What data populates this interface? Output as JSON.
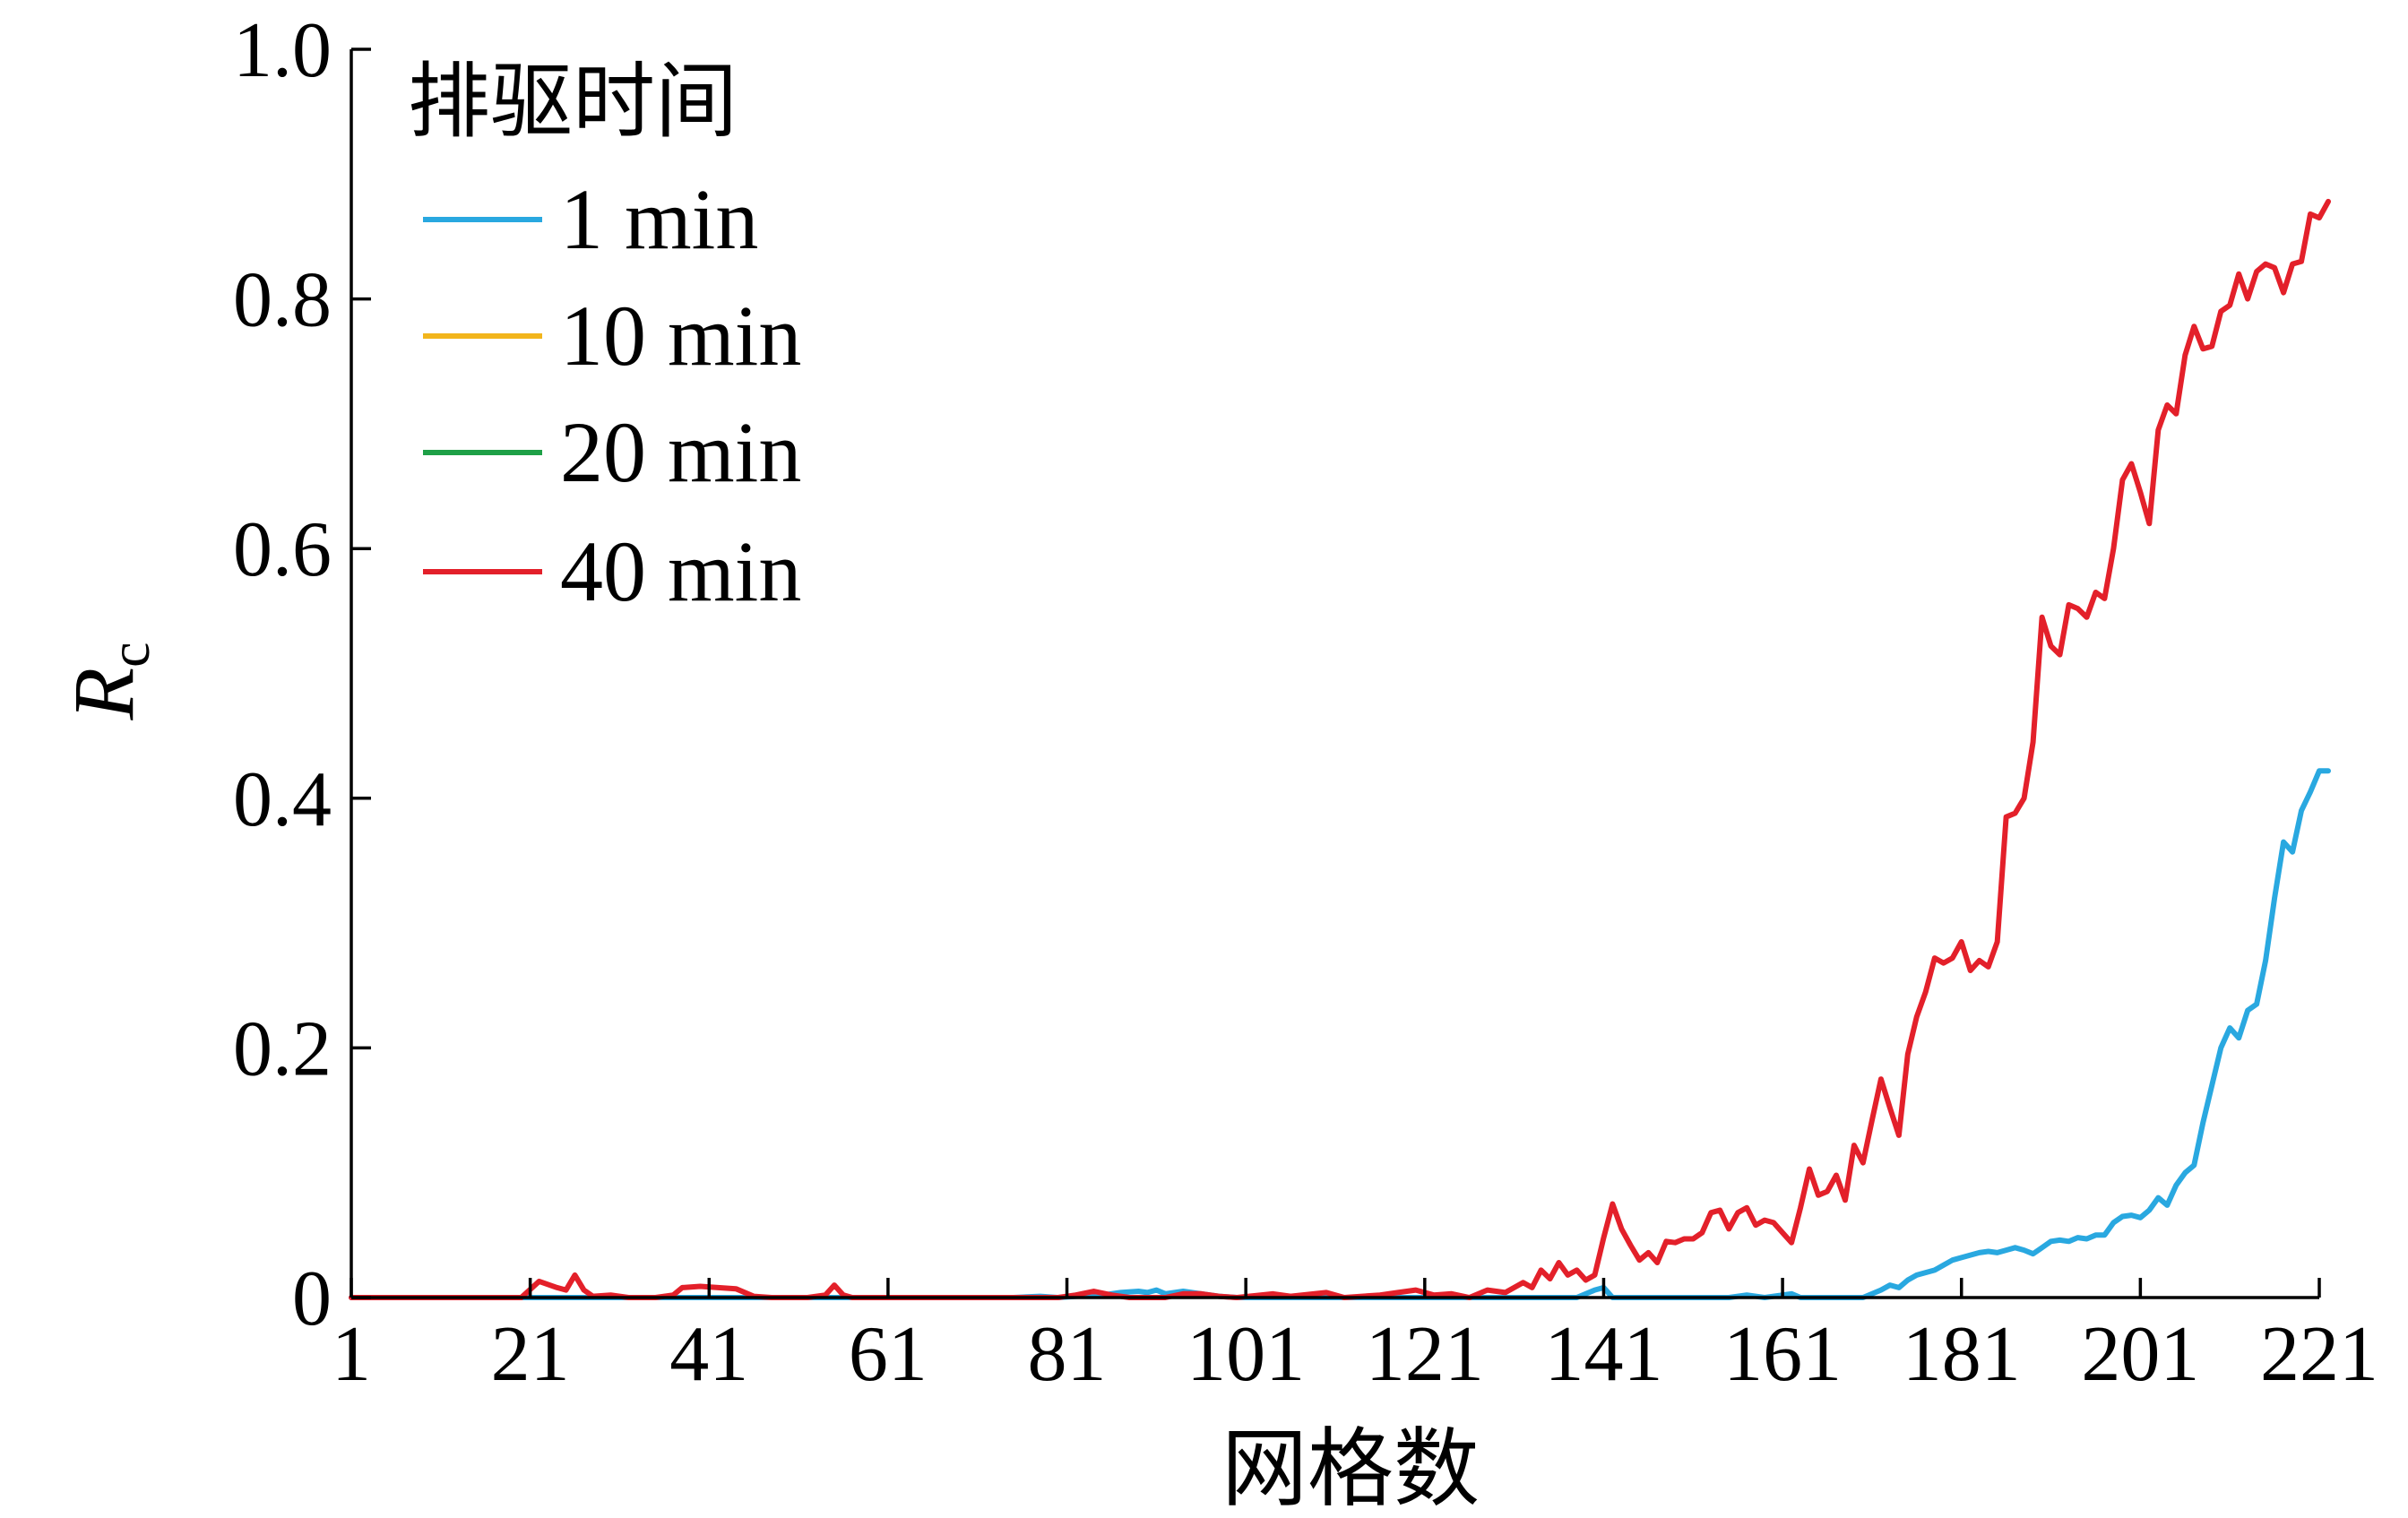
{
  "chart_data": {
    "type": "line",
    "title": "",
    "xlabel": "网格数",
    "ylabel": "R",
    "ylabel_sub": "c",
    "xlim": [
      1,
      221
    ],
    "ylim": [
      0,
      1.0
    ],
    "x_ticks": [
      1,
      21,
      41,
      61,
      81,
      101,
      121,
      141,
      161,
      181,
      201,
      221
    ],
    "y_ticks": [
      {
        "value": 0,
        "label": "0"
      },
      {
        "value": 0.2,
        "label": "0.2"
      },
      {
        "value": 0.4,
        "label": "0.4"
      },
      {
        "value": 0.6,
        "label": "0.6"
      },
      {
        "value": 0.8,
        "label": "0.8"
      },
      {
        "value": 1.0,
        "label": "1.0"
      }
    ],
    "legend": {
      "title": "排驱时间",
      "position": "top-left"
    },
    "series": [
      {
        "name": "1 min",
        "color": "#29a8e0",
        "points": [
          [
            1,
            0
          ],
          [
            21,
            0
          ],
          [
            41,
            0
          ],
          [
            61,
            0
          ],
          [
            75,
            0
          ],
          [
            78,
            0.001
          ],
          [
            80,
            0
          ],
          [
            82,
            0.001
          ],
          [
            85,
            0.002
          ],
          [
            87,
            0.004
          ],
          [
            89,
            0.005
          ],
          [
            90,
            0.004
          ],
          [
            91,
            0.006
          ],
          [
            92,
            0.003
          ],
          [
            94,
            0.005
          ],
          [
            96,
            0.003
          ],
          [
            98,
            0.001
          ],
          [
            100,
            0
          ],
          [
            120,
            0
          ],
          [
            138,
            0
          ],
          [
            140,
            0.006
          ],
          [
            141,
            0.008
          ],
          [
            142,
            0
          ],
          [
            155,
            0
          ],
          [
            157,
            0.002
          ],
          [
            159,
            0
          ],
          [
            162,
            0.003
          ],
          [
            163,
            0
          ],
          [
            170,
            0
          ],
          [
            172,
            0.006
          ],
          [
            173,
            0.01
          ],
          [
            174,
            0.008
          ],
          [
            175,
            0.014
          ],
          [
            176,
            0.018
          ],
          [
            177,
            0.02
          ],
          [
            178,
            0.022
          ],
          [
            179,
            0.026
          ],
          [
            180,
            0.03
          ],
          [
            181,
            0.032
          ],
          [
            182,
            0.034
          ],
          [
            183,
            0.036
          ],
          [
            184,
            0.037
          ],
          [
            185,
            0.036
          ],
          [
            186,
            0.038
          ],
          [
            187,
            0.04
          ],
          [
            188,
            0.038
          ],
          [
            189,
            0.035
          ],
          [
            190,
            0.04
          ],
          [
            191,
            0.045
          ],
          [
            192,
            0.046
          ],
          [
            193,
            0.045
          ],
          [
            194,
            0.048
          ],
          [
            195,
            0.047
          ],
          [
            196,
            0.05
          ],
          [
            197,
            0.05
          ],
          [
            198,
            0.06
          ],
          [
            199,
            0.065
          ],
          [
            200,
            0.066
          ],
          [
            201,
            0.064
          ],
          [
            202,
            0.07
          ],
          [
            203,
            0.08
          ],
          [
            204,
            0.074
          ],
          [
            205,
            0.09
          ],
          [
            206,
            0.1
          ],
          [
            207,
            0.106
          ],
          [
            208,
            0.14
          ],
          [
            209,
            0.17
          ],
          [
            210,
            0.2
          ],
          [
            211,
            0.216
          ],
          [
            212,
            0.208
          ],
          [
            213,
            0.23
          ],
          [
            214,
            0.235
          ],
          [
            215,
            0.27
          ],
          [
            216,
            0.32
          ],
          [
            217,
            0.365
          ],
          [
            218,
            0.357
          ],
          [
            219,
            0.39
          ],
          [
            220,
            0.405
          ],
          [
            221,
            0.422
          ],
          [
            222,
            0.422
          ]
        ]
      },
      {
        "name": "10 min",
        "color": "#f2b51c",
        "points": []
      },
      {
        "name": "20 min",
        "color": "#1ea047",
        "points": []
      },
      {
        "name": "40 min",
        "color": "#e3202a",
        "points": [
          [
            1,
            0
          ],
          [
            20,
            0
          ],
          [
            22,
            0.013
          ],
          [
            24,
            0.008
          ],
          [
            25,
            0.006
          ],
          [
            26,
            0.018
          ],
          [
            27,
            0.006
          ],
          [
            28,
            0.001
          ],
          [
            30,
            0.002
          ],
          [
            32,
            0
          ],
          [
            35,
            0
          ],
          [
            37,
            0.002
          ],
          [
            38,
            0.008
          ],
          [
            40,
            0.009
          ],
          [
            42,
            0.008
          ],
          [
            44,
            0.007
          ],
          [
            46,
            0.001
          ],
          [
            48,
            0
          ],
          [
            52,
            0
          ],
          [
            54,
            0.002
          ],
          [
            55,
            0.01
          ],
          [
            56,
            0.002
          ],
          [
            57,
            0
          ],
          [
            80,
            0
          ],
          [
            82,
            0.002
          ],
          [
            84,
            0.005
          ],
          [
            86,
            0.002
          ],
          [
            88,
            0
          ],
          [
            92,
            0
          ],
          [
            94,
            0.003
          ],
          [
            96,
            0.003
          ],
          [
            98,
            0.001
          ],
          [
            100,
            0
          ],
          [
            104,
            0.003
          ],
          [
            106,
            0.001
          ],
          [
            110,
            0.004
          ],
          [
            112,
            0
          ],
          [
            116,
            0.002
          ],
          [
            118,
            0.004
          ],
          [
            120,
            0.006
          ],
          [
            122,
            0.002
          ],
          [
            124,
            0.003
          ],
          [
            126,
            0
          ],
          [
            128,
            0.006
          ],
          [
            130,
            0.004
          ],
          [
            132,
            0.012
          ],
          [
            133,
            0.008
          ],
          [
            134,
            0.022
          ],
          [
            135,
            0.015
          ],
          [
            136,
            0.028
          ],
          [
            137,
            0.018
          ],
          [
            138,
            0.022
          ],
          [
            139,
            0.014
          ],
          [
            140,
            0.018
          ],
          [
            141,
            0.048
          ],
          [
            142,
            0.075
          ],
          [
            143,
            0.055
          ],
          [
            144,
            0.042
          ],
          [
            145,
            0.03
          ],
          [
            146,
            0.036
          ],
          [
            147,
            0.028
          ],
          [
            148,
            0.045
          ],
          [
            149,
            0.044
          ],
          [
            150,
            0.047
          ],
          [
            151,
            0.047
          ],
          [
            152,
            0.052
          ],
          [
            153,
            0.068
          ],
          [
            154,
            0.07
          ],
          [
            155,
            0.055
          ],
          [
            156,
            0.068
          ],
          [
            157,
            0.072
          ],
          [
            158,
            0.058
          ],
          [
            159,
            0.062
          ],
          [
            160,
            0.06
          ],
          [
            161,
            0.052
          ],
          [
            162,
            0.044
          ],
          [
            163,
            0.072
          ],
          [
            164,
            0.103
          ],
          [
            165,
            0.082
          ],
          [
            166,
            0.085
          ],
          [
            167,
            0.098
          ],
          [
            168,
            0.078
          ],
          [
            169,
            0.122
          ],
          [
            170,
            0.108
          ],
          [
            171,
            0.142
          ],
          [
            172,
            0.175
          ],
          [
            173,
            0.152
          ],
          [
            174,
            0.13
          ],
          [
            175,
            0.195
          ],
          [
            176,
            0.225
          ],
          [
            177,
            0.245
          ],
          [
            178,
            0.272
          ],
          [
            179,
            0.268
          ],
          [
            180,
            0.272
          ],
          [
            181,
            0.285
          ],
          [
            182,
            0.262
          ],
          [
            183,
            0.27
          ],
          [
            184,
            0.265
          ],
          [
            185,
            0.285
          ],
          [
            186,
            0.385
          ],
          [
            187,
            0.388
          ],
          [
            188,
            0.4
          ],
          [
            189,
            0.445
          ],
          [
            190,
            0.545
          ],
          [
            191,
            0.522
          ],
          [
            192,
            0.515
          ],
          [
            193,
            0.555
          ],
          [
            194,
            0.552
          ],
          [
            195,
            0.545
          ],
          [
            196,
            0.565
          ],
          [
            197,
            0.56
          ],
          [
            198,
            0.6
          ],
          [
            199,
            0.655
          ],
          [
            200,
            0.668
          ],
          [
            201,
            0.645
          ],
          [
            202,
            0.62
          ],
          [
            203,
            0.695
          ],
          [
            204,
            0.715
          ],
          [
            205,
            0.708
          ],
          [
            206,
            0.755
          ],
          [
            207,
            0.778
          ],
          [
            208,
            0.76
          ],
          [
            209,
            0.762
          ],
          [
            210,
            0.79
          ],
          [
            211,
            0.795
          ],
          [
            212,
            0.82
          ],
          [
            213,
            0.8
          ],
          [
            214,
            0.822
          ],
          [
            215,
            0.828
          ],
          [
            216,
            0.825
          ],
          [
            217,
            0.805
          ],
          [
            218,
            0.828
          ],
          [
            219,
            0.83
          ],
          [
            220,
            0.868
          ],
          [
            221,
            0.865
          ],
          [
            222,
            0.878
          ]
        ]
      }
    ]
  }
}
